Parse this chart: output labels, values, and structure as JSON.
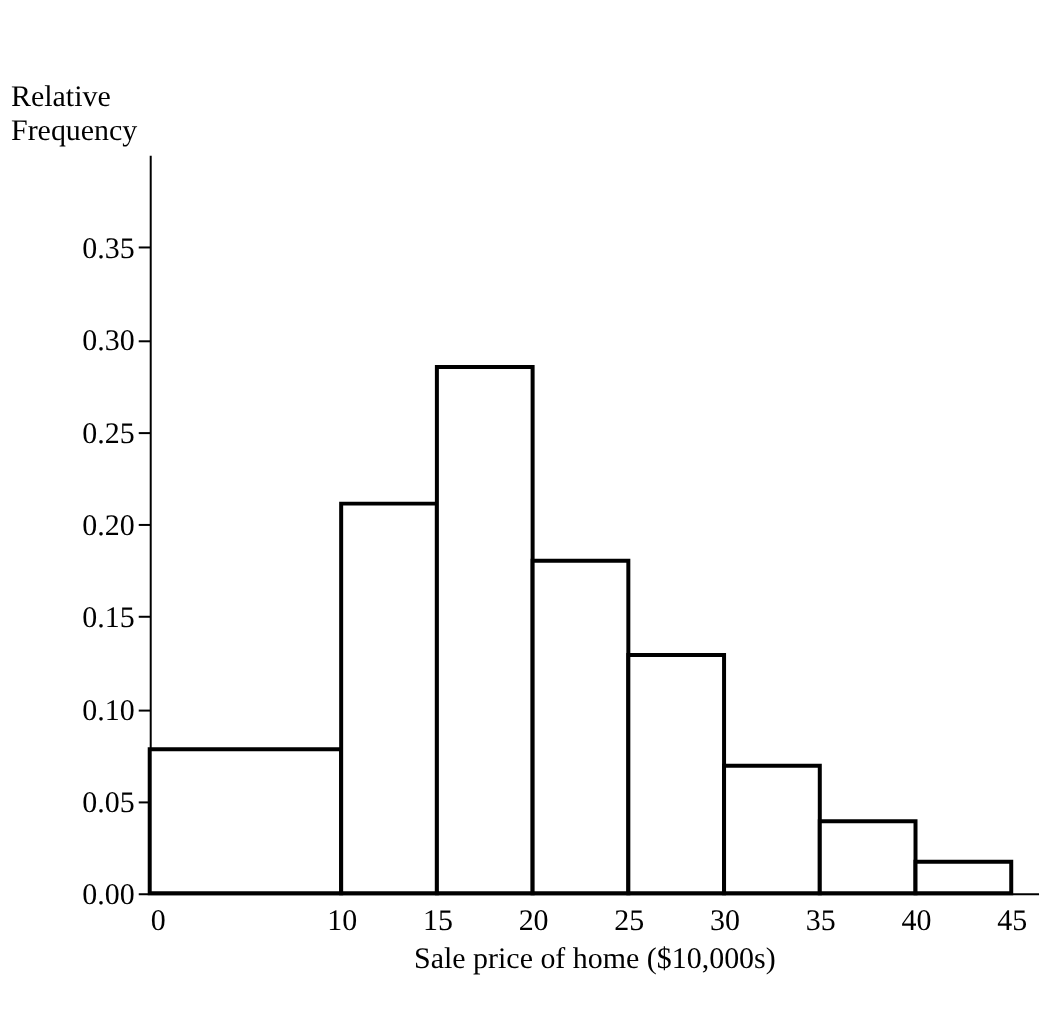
{
  "chart_data": {
    "type": "histogram",
    "xlabel": "Sale price of home ($10,000s)",
    "ylabel": "Relative Frequency",
    "bins": [
      0,
      10,
      15,
      20,
      25,
      30,
      35,
      40,
      45
    ],
    "values": [
      0.078,
      0.211,
      0.285,
      0.18,
      0.129,
      0.069,
      0.039,
      0.017
    ],
    "color": "#ffffff",
    "xlim": [
      0,
      46.4
    ],
    "xticks": [
      0,
      10,
      15,
      20,
      25,
      30,
      35,
      40,
      45
    ],
    "ylim": [
      0,
      0.4
    ],
    "yticks": [
      {
        "value": 0,
        "label": "0.00"
      },
      0.05,
      {
        "value": 0.1,
        "label": "0.10"
      },
      0.15,
      {
        "value": 0.2,
        "label": "0.20"
      },
      0.25,
      {
        "value": 0.3,
        "label": "0.30"
      },
      0.35
    ],
    "grid": false
  }
}
